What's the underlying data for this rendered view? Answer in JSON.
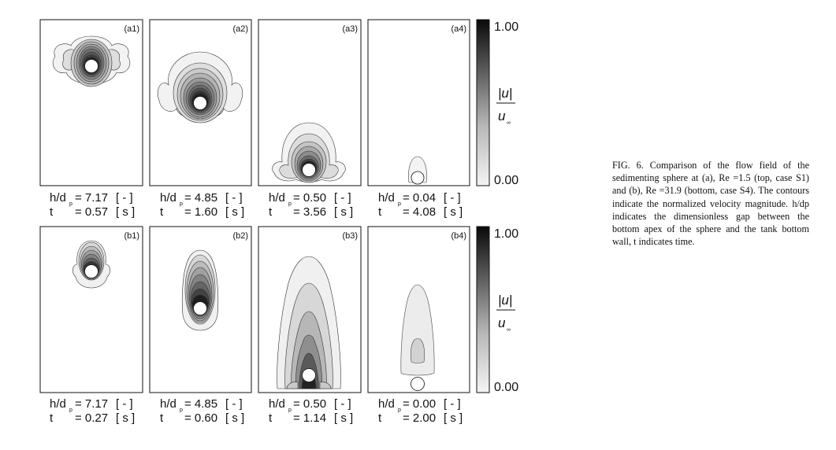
{
  "rows": [
    {
      "id": "a",
      "panels": [
        {
          "label": "(a1)",
          "h_label": "h/d",
          "h_sub": "p",
          "h_value": "= 7.17",
          "h_unit": "[ - ]",
          "t_label": "t",
          "t_value": "= 0.57",
          "t_unit": "[ s ]"
        },
        {
          "label": "(a2)",
          "h_label": "h/d",
          "h_sub": "p",
          "h_value": "= 4.85",
          "h_unit": "[ - ]",
          "t_label": "t",
          "t_value": "= 1.60",
          "t_unit": "[ s ]"
        },
        {
          "label": "(a3)",
          "h_label": "h/d",
          "h_sub": "p",
          "h_value": "= 0.50",
          "h_unit": "[ - ]",
          "t_label": "t",
          "t_value": "= 3.56",
          "t_unit": "[ s ]"
        },
        {
          "label": "(a4)",
          "h_label": "h/d",
          "h_sub": "p",
          "h_value": "= 0.04",
          "h_unit": "[ - ]",
          "t_label": "t",
          "t_value": "= 4.08",
          "t_unit": "[ s ]"
        }
      ],
      "colorbar": {
        "max": "1.00",
        "min": "0.00"
      }
    },
    {
      "id": "b",
      "panels": [
        {
          "label": "(b1)",
          "h_label": "h/d",
          "h_sub": "p",
          "h_value": "= 7.17",
          "h_unit": "[ - ]",
          "t_label": "t",
          "t_value": "= 0.27",
          "t_unit": "[ s ]"
        },
        {
          "label": "(b2)",
          "h_label": "h/d",
          "h_sub": "p",
          "h_value": "= 4.85",
          "h_unit": "[ - ]",
          "t_label": "t",
          "t_value": "= 0.60",
          "t_unit": "[ s ]"
        },
        {
          "label": "(b3)",
          "h_label": "h/d",
          "h_sub": "p",
          "h_value": "= 0.50",
          "h_unit": "[ - ]",
          "t_label": "t",
          "t_value": "= 1.14",
          "t_unit": "[ s ]"
        },
        {
          "label": "(b4)",
          "h_label": "h/d",
          "h_sub": "p",
          "h_value": "= 0.00",
          "h_unit": "[ - ]",
          "t_label": "t",
          "t_value": "= 2.00",
          "t_unit": "[ s ]"
        }
      ],
      "colorbar": {
        "max": "1.00",
        "min": "0.00"
      }
    }
  ],
  "colorbar_symbol": {
    "numerator": "|u|",
    "denominator": "u",
    "denominator_sub": "∞"
  },
  "caption": {
    "fig": "FIG. 6.",
    "text": "Comparison of the flow field of the sedimenting sphere at (a), Re =1.5 (top, case S1) and (b), Re =31.9 (bottom, case S4). The contours indicate the normalized velocity magnitude. h/dp indicates the dimensionless gap between the bottom apex of the sphere and the tank bottom wall, t indicates time."
  }
}
